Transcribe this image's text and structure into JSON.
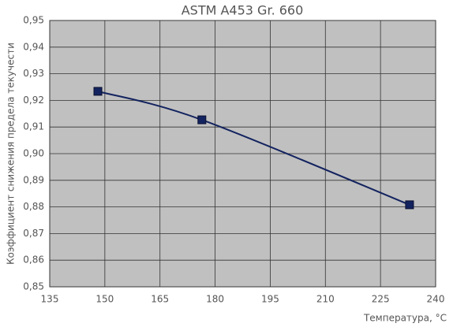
{
  "chart_data": {
    "type": "line",
    "title": "ASTM A453 Gr. 660",
    "x_label": "Температура, °C",
    "y_label": "Коэффициент снижения предела текучести",
    "x": [
      148.1,
      176.4,
      232.9
    ],
    "series": [
      {
        "name": "ASTM A453 Gr. 660",
        "color": "#13235f",
        "values": [
          0.9234,
          0.9127,
          0.8808
        ]
      }
    ],
    "xlim": [
      135,
      240
    ],
    "xticks": [
      135,
      150,
      165,
      180,
      195,
      210,
      225,
      240
    ],
    "ylim": [
      0.85,
      0.95
    ],
    "yticks": [
      {
        "value": 0.85,
        "label": "0,85"
      },
      {
        "value": 0.86,
        "label": "0,86"
      },
      {
        "value": 0.87,
        "label": "0,87"
      },
      {
        "value": 0.88,
        "label": "0,88"
      },
      {
        "value": 0.89,
        "label": "0,89"
      },
      {
        "value": 0.9,
        "label": "0,90"
      },
      {
        "value": 0.91,
        "label": "0,91"
      },
      {
        "value": 0.92,
        "label": "0,92"
      },
      {
        "value": 0.93,
        "label": "0,93"
      },
      {
        "value": 0.94,
        "label": "0,94"
      },
      {
        "value": 0.95,
        "label": "0,95"
      }
    ],
    "grid": true
  }
}
